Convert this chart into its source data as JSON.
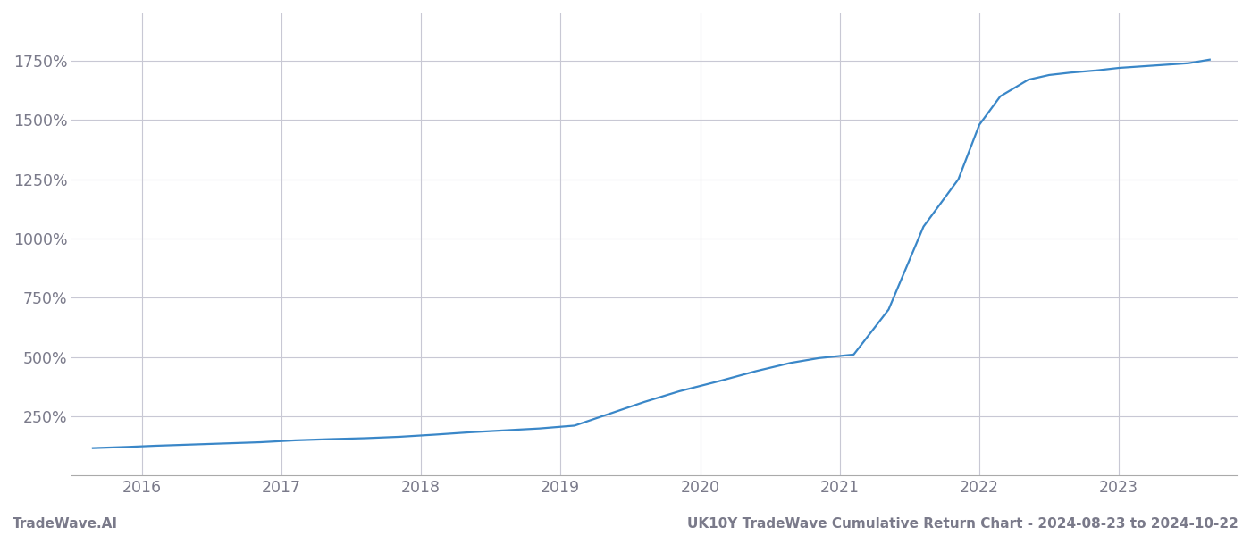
{
  "title_right": "UK10Y TradeWave Cumulative Return Chart - 2024-08-23 to 2024-10-22",
  "title_left": "TradeWave.AI",
  "line_color": "#3a87c8",
  "background_color": "#ffffff",
  "grid_color": "#c8c8d4",
  "x_years": [
    2016,
    2017,
    2018,
    2019,
    2020,
    2021,
    2022,
    2023
  ],
  "x_data": [
    2015.65,
    2015.9,
    2016.1,
    2016.35,
    2016.6,
    2016.85,
    2017.1,
    2017.35,
    2017.6,
    2017.85,
    2018.1,
    2018.35,
    2018.6,
    2018.85,
    2019.1,
    2019.35,
    2019.6,
    2019.85,
    2019.95,
    2020.05,
    2020.15,
    2020.4,
    2020.65,
    2020.85,
    2021.1,
    2021.35,
    2021.6,
    2021.85,
    2022.0,
    2022.15,
    2022.35,
    2022.5,
    2022.65,
    2022.85,
    2023.0,
    2023.25,
    2023.5,
    2023.65
  ],
  "y_data": [
    115,
    120,
    125,
    130,
    135,
    140,
    148,
    153,
    157,
    163,
    172,
    182,
    190,
    198,
    210,
    260,
    310,
    355,
    370,
    385,
    400,
    440,
    475,
    495,
    510,
    700,
    1050,
    1250,
    1480,
    1600,
    1670,
    1690,
    1700,
    1710,
    1720,
    1730,
    1740,
    1755
  ],
  "ylim_min": 0,
  "ylim_max": 1950,
  "yticks": [
    250,
    500,
    750,
    1000,
    1250,
    1500,
    1750
  ],
  "xlim_min": 2015.5,
  "xlim_max": 2023.85,
  "tick_label_color": "#7a7a8a",
  "tick_fontsize": 12.5,
  "footer_fontsize": 11,
  "line_width": 1.6
}
